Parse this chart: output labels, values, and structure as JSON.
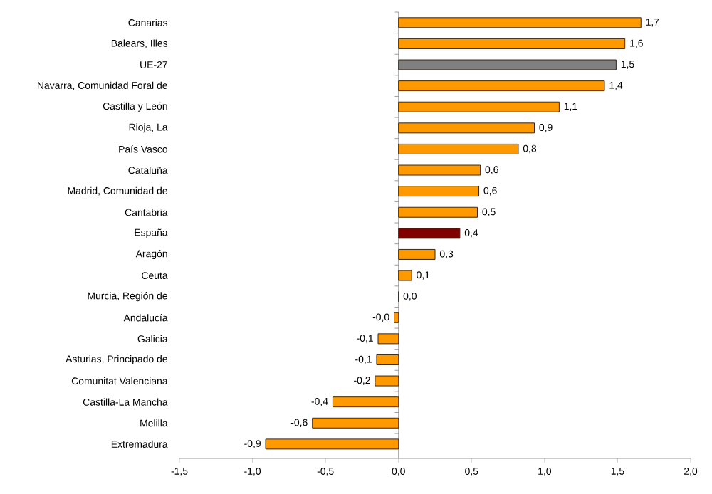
{
  "chart_data": {
    "type": "bar",
    "orientation": "horizontal",
    "categories": [
      "Canarias",
      "Balears, Illes",
      "UE-27",
      "Navarra, Comunidad  Foral de",
      "Castilla y León",
      "Rioja, La",
      "País Vasco",
      "Cataluña",
      "Madrid, Comunidad de",
      "Cantabria",
      "España",
      "Aragón",
      "Ceuta",
      "Murcia, Región de",
      "Andalucía",
      "Galicia",
      "Asturias, Principado de",
      "Comunitat Valenciana",
      "Castilla-La Mancha",
      "Melilla",
      "Extremadura"
    ],
    "values": [
      1.66,
      1.55,
      1.49,
      1.41,
      1.1,
      0.93,
      0.82,
      0.56,
      0.55,
      0.54,
      0.42,
      0.25,
      0.09,
      0,
      -0.03,
      -0.14,
      -0.15,
      -0.16,
      -0.45,
      -0.59,
      -0.91
    ],
    "value_labels": [
      "1,7",
      "1,6",
      "1,5",
      "1,4",
      "1,1",
      "0,9",
      "0,8",
      "0,6",
      "0,6",
      "0,5",
      "0,4",
      "0,3",
      "0,1",
      "0,0",
      "-0,0",
      "-0,1",
      "-0,1",
      "-0,2",
      "-0,4",
      "-0,6",
      "-0,9"
    ],
    "colors": [
      "#ff9900",
      "#ff9900",
      "#808080",
      "#ff9900",
      "#ff9900",
      "#ff9900",
      "#ff9900",
      "#ff9900",
      "#ff9900",
      "#ff9900",
      "#800000",
      "#ff9900",
      "#ff9900",
      "#ff9900",
      "#ff9900",
      "#ff9900",
      "#ff9900",
      "#ff9900",
      "#ff9900",
      "#ff9900",
      "#ff9900"
    ],
    "xlim": [
      -1.5,
      2.0
    ],
    "xticks": [
      {
        "value": -1.5,
        "label": "-1,5"
      },
      {
        "value": -1.0,
        "label": "-1,0"
      },
      {
        "value": -0.5,
        "label": "-0,5"
      },
      {
        "value": 0,
        "label": "0,0"
      },
      {
        "value": 0.5,
        "label": "0,5"
      },
      {
        "value": 1.0,
        "label": "1,0"
      },
      {
        "value": 1.5,
        "label": "1,5"
      },
      {
        "value": 2.0,
        "label": "2,0"
      }
    ],
    "tick_labels": "x"
  }
}
